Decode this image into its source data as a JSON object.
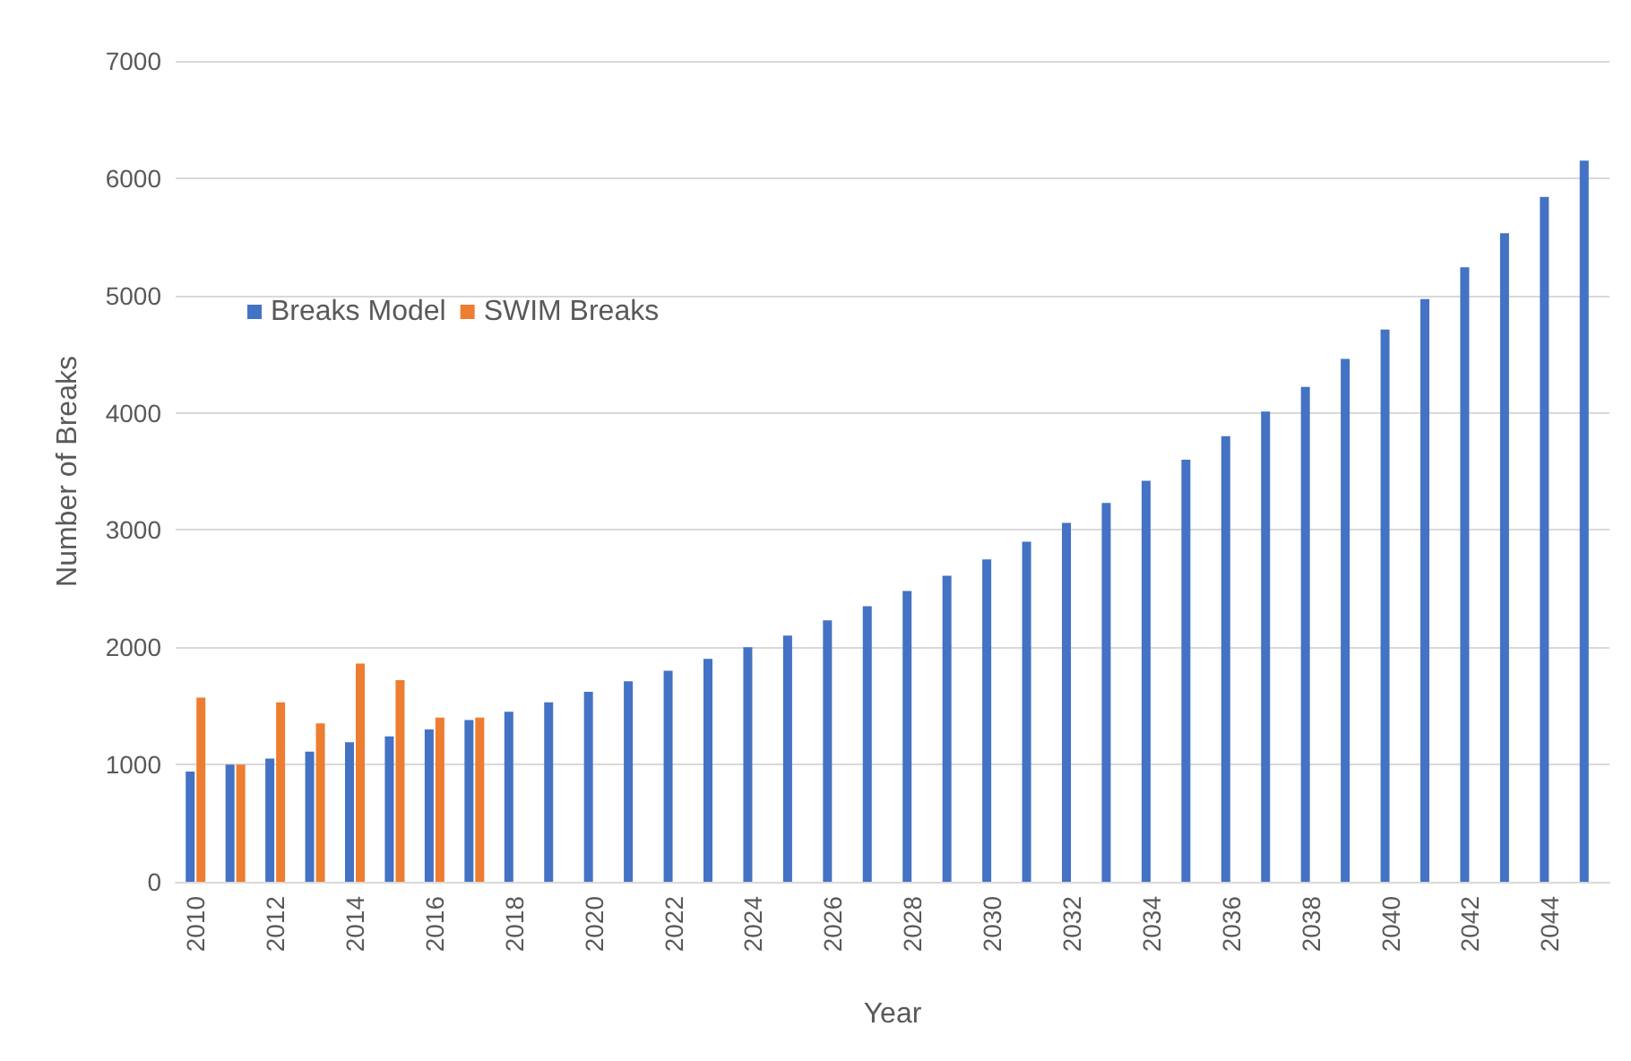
{
  "chart_data": {
    "type": "bar",
    "xlabel": "Year",
    "ylabel": "Number of Breaks",
    "categories": [
      "2010",
      null,
      "2012",
      null,
      "2014",
      null,
      "2016",
      null,
      "2018",
      null,
      "2020",
      null,
      "2022",
      null,
      "2024",
      null,
      "2026",
      null,
      "2028",
      null,
      "2030",
      null,
      "2032",
      null,
      "2034",
      null,
      "2036",
      null,
      "2038",
      null,
      "2040",
      null,
      "2042",
      null,
      "2044",
      null
    ],
    "series": [
      {
        "name": "Breaks Model",
        "color": "#4472c4",
        "values": [
          940,
          1000,
          1050,
          1110,
          1190,
          1240,
          1300,
          1380,
          1450,
          1530,
          1620,
          1710,
          1800,
          1900,
          2000,
          2100,
          2230,
          2350,
          2480,
          2610,
          2750,
          2900,
          3060,
          3230,
          3420,
          3600,
          3800,
          4010,
          4220,
          4460,
          4710,
          4970,
          5240,
          5530,
          5840,
          6150
        ]
      },
      {
        "name": "SWIM Breaks",
        "color": "#ed7d31",
        "values": [
          1570,
          1000,
          1530,
          1350,
          1860,
          1720,
          1400,
          1400,
          null,
          null,
          null,
          null,
          null,
          null,
          null,
          null,
          null,
          null,
          null,
          null,
          null,
          null,
          null,
          null,
          null,
          null,
          null,
          null,
          null,
          null,
          null,
          null,
          null,
          null,
          null,
          null
        ]
      }
    ],
    "ylim": [
      0,
      7000
    ],
    "yticks": [
      0,
      1000,
      2000,
      3000,
      4000,
      5000,
      6000,
      7000
    ],
    "grid": "y",
    "legend": "top left"
  }
}
